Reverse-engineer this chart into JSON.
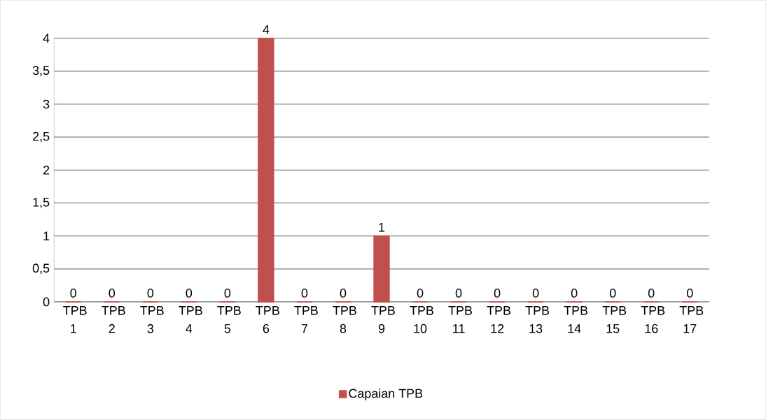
{
  "chart_data": {
    "type": "bar",
    "categories": [
      "TPB 1",
      "TPB 2",
      "TPB 3",
      "TPB 4",
      "TPB 5",
      "TPB 6",
      "TPB 7",
      "TPB 8",
      "TPB 9",
      "TPB 10",
      "TPB 11",
      "TPB 12",
      "TPB 13",
      "TPB 14",
      "TPB 15",
      "TPB 16",
      "TPB 17"
    ],
    "series": [
      {
        "name": "Capaian TPB",
        "color": "#c0504d",
        "values": [
          0,
          0,
          0,
          0,
          0,
          4,
          0,
          0,
          1,
          0,
          0,
          0,
          0,
          0,
          0,
          0,
          0
        ]
      }
    ],
    "ylim": [
      0,
      4
    ],
    "yticks": [
      0,
      {
        "value": 0.5,
        "label": "0,5"
      },
      1,
      {
        "value": 1.5,
        "label": "1,5"
      },
      2,
      {
        "value": 2.5,
        "label": "2,5"
      },
      3,
      {
        "value": 3.5,
        "label": "3,5"
      },
      4
    ],
    "grid": "y",
    "legend": "bottom",
    "data_labels": true
  }
}
